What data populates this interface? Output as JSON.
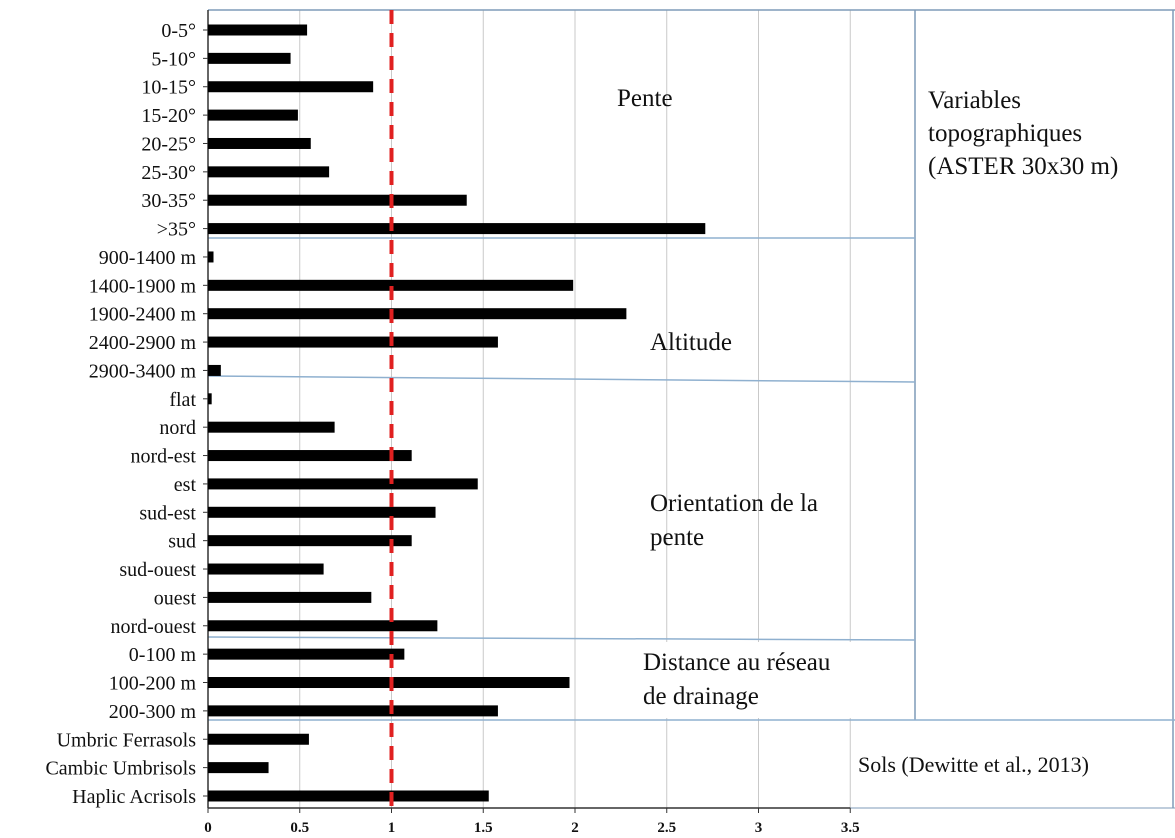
{
  "chart_data": {
    "type": "bar",
    "orientation": "horizontal",
    "categories": [
      "0-5°",
      "5-10°",
      "10-15°",
      "15-20°",
      "20-25°",
      "25-30°",
      "30-35°",
      ">35°",
      "900-1400 m",
      "1400-1900 m",
      "1900-2400 m",
      "2400-2900 m",
      "2900-3400 m",
      "flat",
      "nord",
      "nord-est",
      "est",
      "sud-est",
      "sud",
      "sud-ouest",
      "ouest",
      "nord-ouest",
      "0-100 m",
      "100-200 m",
      "200-300 m",
      "Umbric Ferrasols",
      "Cambic Umbrisols",
      "Haplic Acrisols"
    ],
    "values": [
      0.54,
      0.45,
      0.9,
      0.49,
      0.56,
      0.66,
      1.41,
      2.71,
      0.03,
      1.99,
      2.28,
      1.58,
      0.07,
      0.02,
      0.69,
      1.11,
      1.47,
      1.24,
      1.11,
      0.63,
      0.89,
      1.25,
      1.07,
      1.97,
      1.58,
      0.55,
      0.33,
      1.53
    ],
    "xlim": [
      0,
      3.5
    ],
    "xticks": [
      "0",
      "0.5",
      "1",
      "1.5",
      "2",
      "2.5",
      "3",
      "3.5"
    ],
    "reference_line": {
      "x": 1,
      "color": "#e02020",
      "style": "dashed"
    },
    "bar_color": "#000000",
    "grid": "vertical",
    "groups": [
      {
        "label_lines": [
          "Pente"
        ]
      },
      {
        "label_lines": [
          "Altitude"
        ]
      },
      {
        "label_lines": [
          "Orientation de la",
          "pente"
        ]
      },
      {
        "label_lines": [
          "Distance au réseau",
          "de drainage"
        ]
      },
      {
        "label_lines": [
          "Sols (Dewitte et al., 2013)"
        ]
      }
    ],
    "side_label_lines": [
      "Variables",
      "topographiques",
      "(ASTER 30x30 m)"
    ]
  }
}
